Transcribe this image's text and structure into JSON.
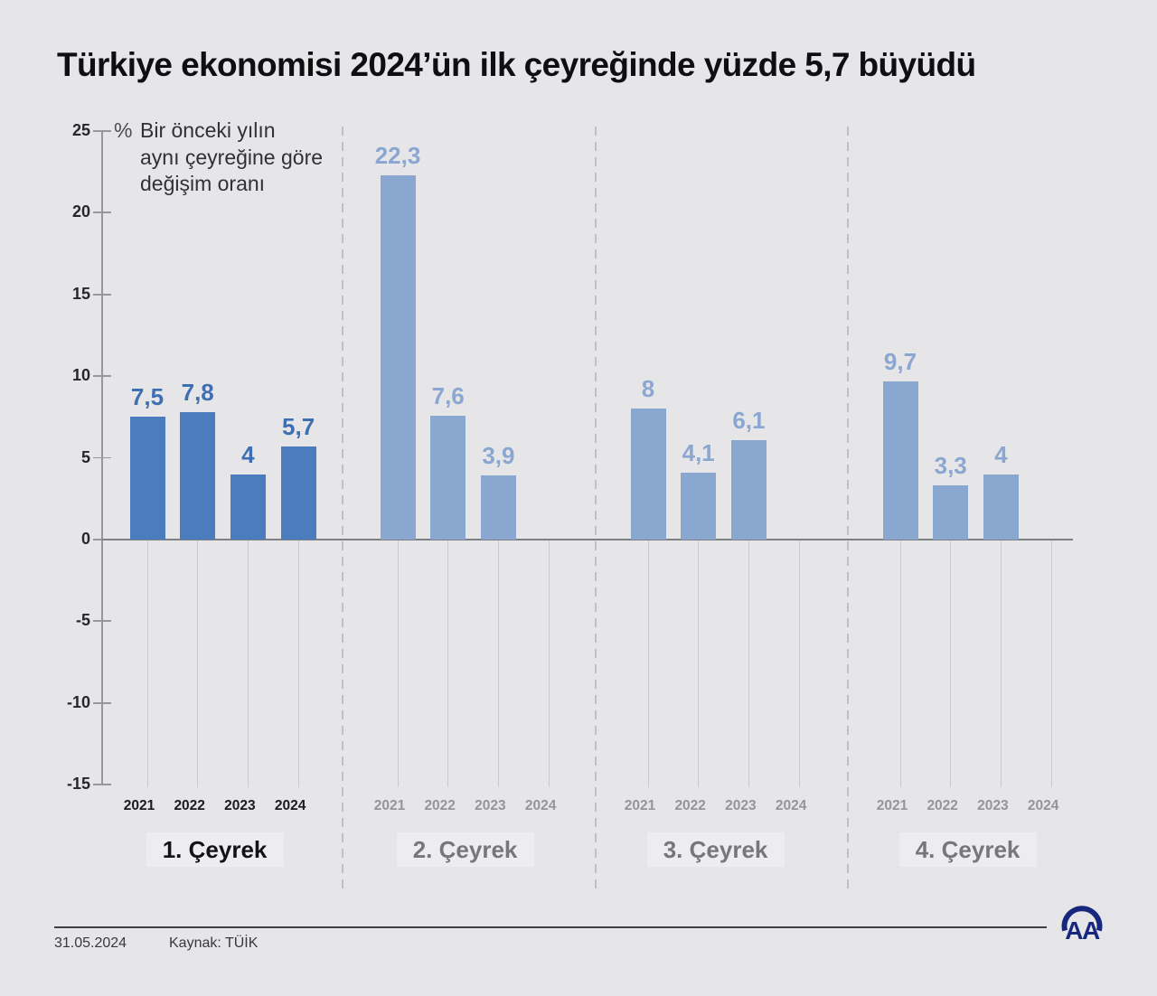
{
  "title": "Türkiye ekonomisi 2024’ün ilk çeyreğinde yüzde 5,7 büyüdü",
  "note": {
    "symbol": "%",
    "lines": [
      "Bir önceki yılın",
      "aynı çeyreğine göre",
      "değişim oranı"
    ]
  },
  "footer": {
    "date": "31.05.2024",
    "source": "Kaynak: TÜİK"
  },
  "logo": {
    "name": "aa-anadolu-agency-logo",
    "text": "AA",
    "color": "#16277d"
  },
  "colors": {
    "background": "#e6e6e8",
    "bar_emphasis": "#4a7cbe",
    "bar_default": "#8aa7d0",
    "value_label_emphasis": "#3e6fb2",
    "value_label_default": "#8ba7d1",
    "text_emphasis": "#1a1b1d",
    "text_muted": "#949599",
    "quarter_emphasis": "#121316",
    "quarter_muted": "#76777b"
  },
  "chart_data": {
    "type": "bar",
    "title": "Türkiye ekonomisi 2024’ün ilk çeyreğinde yüzde 5,7 büyüdü",
    "ylabel": "%",
    "note": "Bir önceki yılın aynı çeyreğine göre değişim oranı",
    "ylim": [
      -15,
      25
    ],
    "yticks": [
      25,
      20,
      15,
      10,
      5,
      0,
      -5,
      -10,
      -15
    ],
    "grid": false,
    "legend": false,
    "groups": [
      {
        "label": "1. Çeyrek",
        "emphasis": true,
        "categories": [
          "2021",
          "2022",
          "2023",
          "2024"
        ],
        "values": [
          7.5,
          7.8,
          4,
          5.7
        ],
        "value_labels": [
          "7,5",
          "7,8",
          "4",
          "5,7"
        ]
      },
      {
        "label": "2. Çeyrek",
        "emphasis": false,
        "categories": [
          "2021",
          "2022",
          "2023",
          "2024"
        ],
        "values": [
          22.3,
          7.6,
          3.9,
          null
        ],
        "value_labels": [
          "22,3",
          "7,6",
          "3,9",
          null
        ]
      },
      {
        "label": "3. Çeyrek",
        "emphasis": false,
        "categories": [
          "2021",
          "2022",
          "2023",
          "2024"
        ],
        "values": [
          8,
          4.1,
          6.1,
          null
        ],
        "value_labels": [
          "8",
          "4,1",
          "6,1",
          null
        ]
      },
      {
        "label": "4. Çeyrek",
        "emphasis": false,
        "categories": [
          "2021",
          "2022",
          "2023",
          "2024"
        ],
        "values": [
          9.7,
          3.3,
          4,
          null
        ],
        "value_labels": [
          "9,7",
          "3,3",
          "4",
          null
        ]
      }
    ]
  }
}
